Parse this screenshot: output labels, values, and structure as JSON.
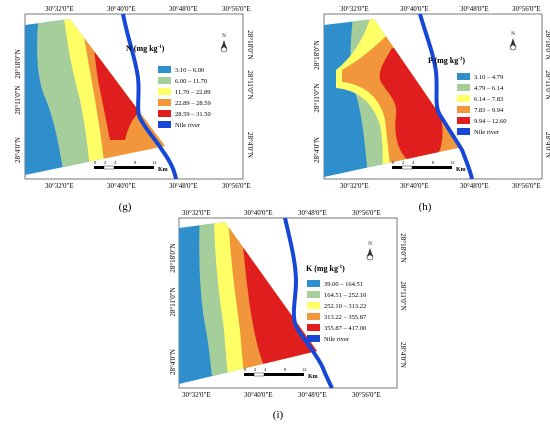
{
  "coord_labels": {
    "lon": [
      "30°32'0\"E",
      "30°40'0\"E",
      "30°48'0\"E",
      "30°56'0\"E"
    ],
    "lat": [
      "28°18'0\"N",
      "28°11'0\"N",
      "28°4'0\"N"
    ]
  },
  "scale": {
    "ticks": [
      "0",
      "2",
      "4",
      "8",
      "12"
    ],
    "unit": "Km"
  },
  "north_letter": "N",
  "colors": {
    "class1": "#2f8fcc",
    "class2": "#a6ce9a",
    "class3": "#ffff66",
    "class4": "#f2963b",
    "class5": "#e11e1e",
    "river": "#1747d6"
  },
  "panels": [
    {
      "id": "g",
      "label": "(g)",
      "legend_title": "N (mg kg",
      "legend_exp": "-1",
      "legend_close": ")",
      "classes": [
        "3.10 – 6.00",
        "6.00 – 11.70",
        "11.70 – 22.89",
        "22.89 – 28.59",
        "28.59 – 31.50"
      ],
      "river_label": "Nile river"
    },
    {
      "id": "h",
      "label": "(h)",
      "legend_title": "P (mg kg",
      "legend_exp": "-1",
      "legend_close": ")",
      "classes": [
        "3.10 – 4.79",
        "4.79 – 6.14",
        "6.14 – 7.83",
        "7.83 – 9.94",
        "9.94 – 12.60"
      ],
      "river_label": "Nile river"
    },
    {
      "id": "i",
      "label": "(i)",
      "legend_title": "K (mg kg",
      "legend_exp": "-1",
      "legend_close": ")",
      "classes": [
        "39.00 – 164.51",
        "164.51 – 252.10",
        "252.10 – 313.22",
        "313.22 – 355.87",
        "355.87 – 417.00"
      ],
      "river_label": "Nile river"
    }
  ]
}
